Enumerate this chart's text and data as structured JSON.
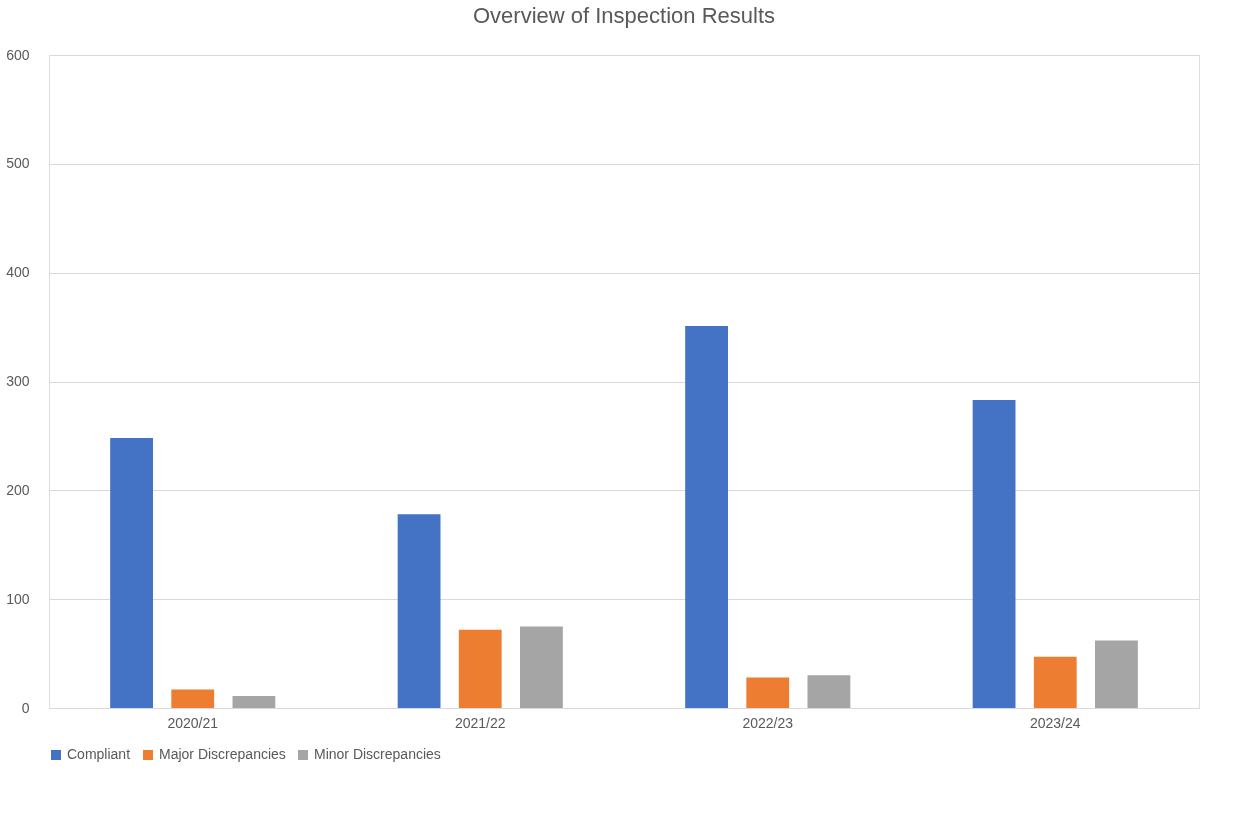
{
  "chart_data": {
    "type": "bar",
    "title": "Overview  of Inspection Results",
    "categories": [
      "2020/21",
      "2021/22",
      "2022/23",
      "2023/24"
    ],
    "series": [
      {
        "name": "Compliant",
        "color": "#4472c4",
        "values": [
          248,
          178,
          351,
          283
        ]
      },
      {
        "name": "Major Discrepancies",
        "color": "#ed7d31",
        "values": [
          17,
          72,
          28,
          47
        ]
      },
      {
        "name": "Minor Discrepancies",
        "color": "#a5a5a5",
        "values": [
          11,
          75,
          30,
          62
        ]
      }
    ],
    "ylim": [
      0,
      600
    ],
    "yticks": [
      0,
      100,
      200,
      300,
      400,
      500,
      600
    ],
    "grid": "y",
    "legend": "bottom"
  }
}
